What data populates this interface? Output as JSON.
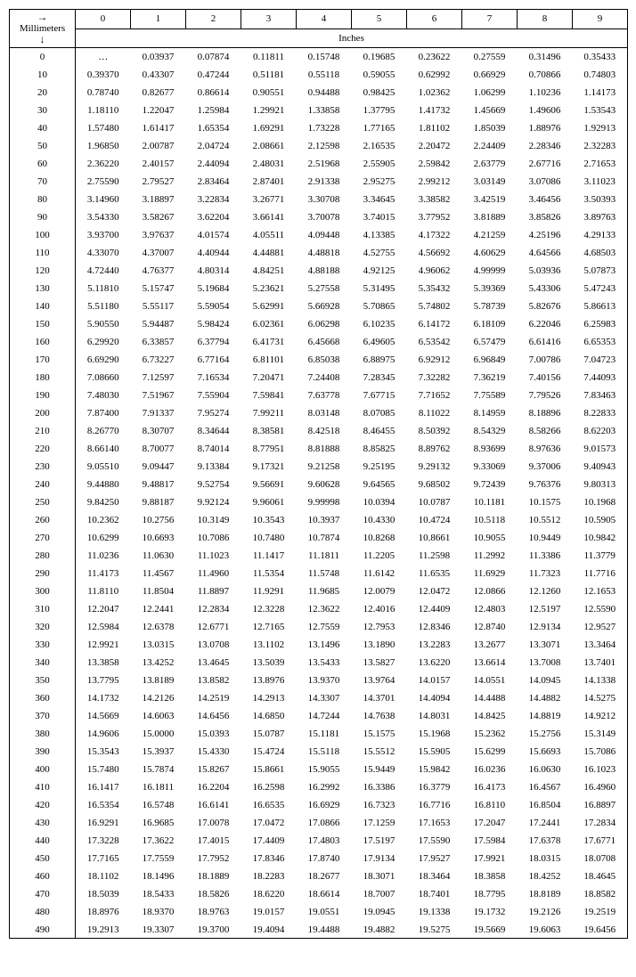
{
  "header": {
    "mm_label": "Millimeters",
    "inches_label": "Inches",
    "col_digits": [
      "0",
      "1",
      "2",
      "3",
      "4",
      "5",
      "6",
      "7",
      "8",
      "9"
    ]
  },
  "table": {
    "mm_start": 0,
    "mm_end": 490,
    "mm_step": 10,
    "factor": 0.03937,
    "first_cell": "…",
    "font_family": "Times New Roman",
    "font_size_pt": 11,
    "border_color": "#000000",
    "background_color": "#ffffff"
  }
}
